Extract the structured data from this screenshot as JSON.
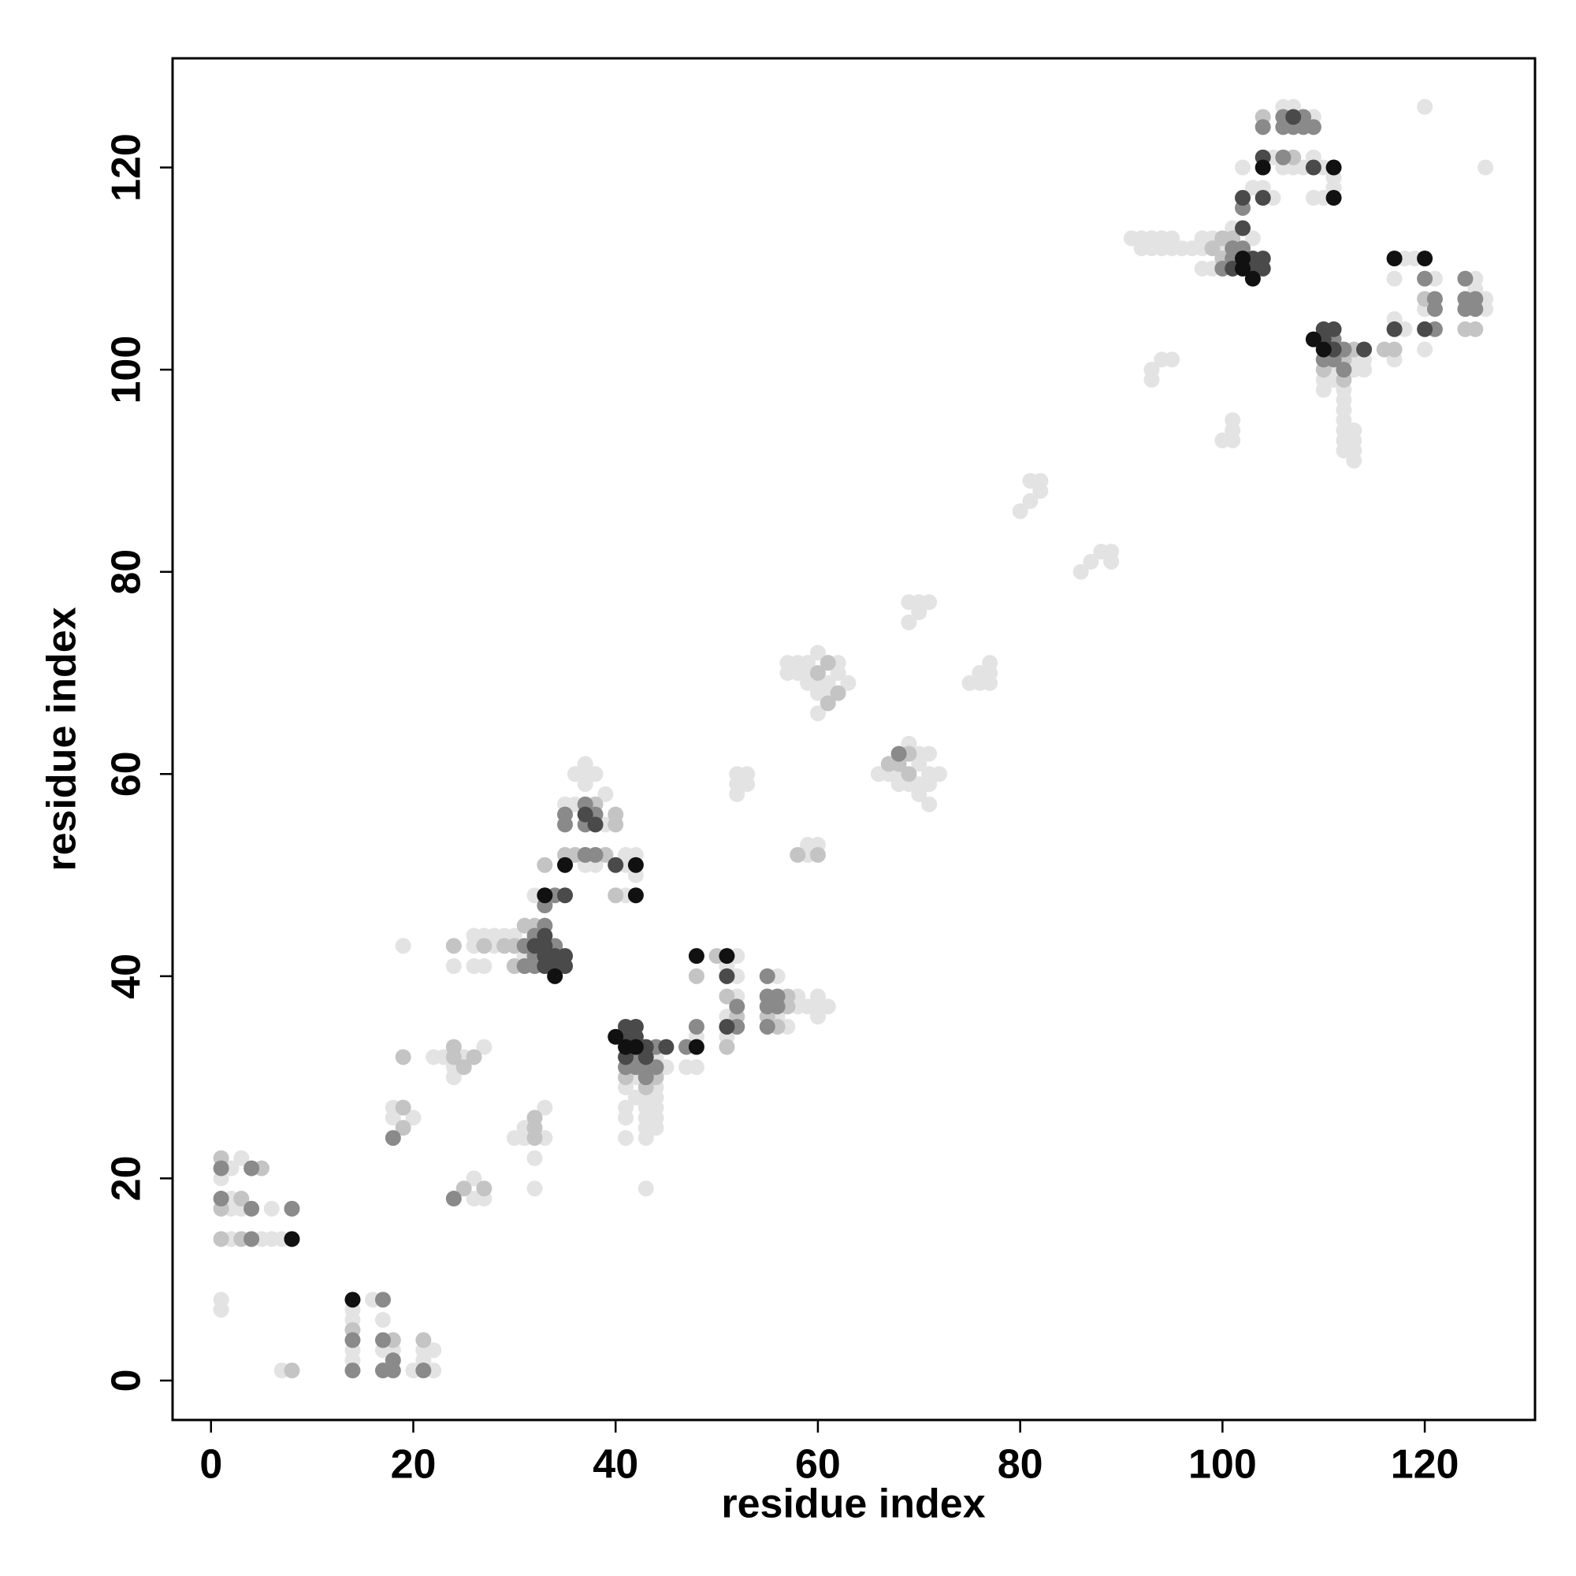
{
  "chart_data": {
    "type": "scatter",
    "x_label": "residue index",
    "y_label": "residue index",
    "xlim": [
      -3.8,
      130.9
    ],
    "ylim": [
      -3.9,
      130.8
    ],
    "xticks": [
      0,
      20,
      40,
      60,
      80,
      100,
      120
    ],
    "yticks": [
      0,
      20,
      40,
      60,
      80,
      100,
      120
    ],
    "series": [
      {
        "color": "#e3e3e3",
        "x": [
          1,
          1,
          1,
          2,
          2,
          2,
          2,
          3,
          3,
          5,
          6,
          6,
          7,
          7,
          14,
          14,
          14,
          14,
          16,
          17,
          17,
          18,
          20,
          21,
          21,
          22,
          22,
          18,
          18,
          19,
          20,
          22,
          23,
          24,
          24,
          24,
          25,
          26,
          26,
          26,
          26,
          26,
          27,
          27,
          27,
          27,
          28,
          28,
          29,
          30,
          30,
          31,
          31,
          31,
          32,
          32,
          32,
          33,
          33,
          35,
          36,
          36,
          37,
          37,
          37,
          37,
          38,
          38,
          39,
          39,
          41,
          41,
          41,
          41,
          41,
          41,
          41,
          42,
          42,
          42,
          42,
          43,
          43,
          43,
          43,
          43,
          43,
          44,
          44,
          44,
          44,
          44,
          44,
          45,
          47,
          48,
          48,
          51,
          51,
          51,
          52,
          52,
          52,
          52,
          52,
          52,
          53,
          53,
          56,
          56,
          57,
          57,
          57,
          58,
          58,
          58,
          58,
          59,
          59,
          59,
          59,
          59,
          59,
          60,
          60,
          60,
          60,
          60,
          60,
          60,
          60,
          61,
          61,
          61,
          62,
          62,
          63,
          66,
          67,
          68,
          68,
          69,
          69,
          69,
          69,
          70,
          70,
          70,
          70,
          70,
          70,
          71,
          71,
          71,
          71,
          71,
          72,
          75,
          76,
          76,
          77,
          77,
          77,
          80,
          81,
          81,
          82,
          82,
          86,
          87,
          88,
          89,
          89,
          91,
          92,
          92,
          93,
          93,
          93,
          93,
          94,
          94,
          94,
          95,
          95,
          95,
          96,
          97,
          98,
          98,
          98,
          99,
          99,
          100,
          100,
          101,
          101,
          101,
          101,
          102,
          103,
          103,
          104,
          105,
          105,
          106,
          106,
          107,
          107,
          108,
          109,
          109,
          109,
          110,
          110,
          110,
          110,
          111,
          111,
          111,
          111,
          112,
          112,
          112,
          112,
          112,
          112,
          112,
          113,
          113,
          113,
          113,
          113,
          113,
          114,
          114,
          117,
          117,
          117,
          118,
          118,
          119,
          120,
          120,
          120,
          121,
          125,
          125,
          126,
          126,
          126
        ],
        "y": [
          20,
          8,
          7,
          21,
          18,
          17,
          14,
          22,
          17,
          14,
          17,
          14,
          14,
          1,
          7,
          6,
          3,
          2,
          8,
          6,
          3,
          3,
          1,
          3,
          2,
          3,
          1,
          27,
          26,
          43,
          26,
          32,
          32,
          31,
          30,
          41,
          32,
          20,
          18,
          43,
          41,
          44,
          33,
          18,
          44,
          41,
          43,
          44,
          44,
          44,
          24,
          42,
          25,
          24,
          48,
          22,
          19,
          27,
          24,
          57,
          60,
          57,
          61,
          60,
          59,
          51,
          60,
          51,
          58,
          55,
          52,
          51,
          48,
          29,
          27,
          26,
          24,
          52,
          50,
          30,
          28,
          28,
          27,
          26,
          25,
          24,
          19,
          32,
          29,
          28,
          27,
          26,
          25,
          31,
          31,
          34,
          31,
          41,
          36,
          34,
          42,
          40,
          38,
          60,
          59,
          58,
          60,
          59,
          40,
          36,
          35,
          71,
          70,
          38,
          37,
          71,
          70,
          37,
          53,
          52,
          71,
          70,
          69,
          38,
          37,
          36,
          53,
          72,
          69,
          68,
          66,
          37,
          69,
          68,
          71,
          70,
          69,
          60,
          60,
          60,
          59,
          63,
          59,
          77,
          75,
          62,
          61,
          59,
          58,
          77,
          76,
          62,
          60,
          59,
          57,
          77,
          60,
          69,
          70,
          69,
          71,
          70,
          69,
          86,
          89,
          87,
          89,
          88,
          80,
          81,
          82,
          82,
          81,
          113,
          113,
          112,
          113,
          112,
          100,
          99,
          113,
          112,
          101,
          113,
          112,
          101,
          112,
          112,
          113,
          112,
          110,
          113,
          110,
          112,
          93,
          114,
          94,
          93,
          95,
          120,
          118,
          113,
          118,
          121,
          117,
          126,
          120,
          126,
          120,
          120,
          125,
          121,
          117,
          120,
          117,
          99,
          98,
          119,
          118,
          100,
          99,
          98,
          97,
          96,
          95,
          94,
          93,
          92,
          101,
          100,
          94,
          93,
          92,
          91,
          101,
          100,
          109,
          105,
          101,
          111,
          104,
          111,
          126,
          106,
          102,
          109,
          109,
          108,
          120,
          107,
          106
        ]
      },
      {
        "color": "#c4c4c4",
        "x": [
          1,
          1,
          1,
          3,
          3,
          5,
          8,
          14,
          18,
          21,
          19,
          19,
          19,
          24,
          24,
          24,
          25,
          25,
          26,
          27,
          27,
          29,
          30,
          30,
          31,
          32,
          32,
          32,
          32,
          33,
          35,
          36,
          38,
          39,
          40,
          40,
          40,
          41,
          43,
          44,
          48,
          50,
          51,
          51,
          52,
          55,
          56,
          57,
          57,
          58,
          60,
          60,
          61,
          61,
          62,
          67,
          68,
          69,
          69,
          99,
          100,
          100,
          101,
          104,
          107,
          110,
          112,
          112,
          113,
          116,
          117,
          120,
          124,
          125
        ],
        "y": [
          22,
          17,
          14,
          18,
          14,
          21,
          1,
          5,
          4,
          4,
          27,
          25,
          32,
          33,
          32,
          43,
          31,
          19,
          32,
          19,
          43,
          43,
          43,
          41,
          45,
          45,
          26,
          25,
          24,
          51,
          52,
          52,
          57,
          52,
          56,
          55,
          48,
          30,
          29,
          30,
          40,
          42,
          38,
          33,
          36,
          36,
          35,
          38,
          37,
          52,
          52,
          70,
          71,
          67,
          68,
          61,
          61,
          62,
          60,
          112,
          113,
          111,
          113,
          125,
          121,
          100,
          101,
          99,
          102,
          102,
          102,
          107,
          104,
          104
        ]
      },
      {
        "color": "#8a8a8a",
        "x": [
          1,
          1,
          4,
          4,
          4,
          8,
          14,
          14,
          17,
          17,
          17,
          18,
          18,
          21,
          18,
          24,
          31,
          31,
          32,
          32,
          32,
          33,
          33,
          34,
          34,
          35,
          35,
          37,
          37,
          37,
          38,
          38,
          41,
          42,
          42,
          43,
          43,
          44,
          44,
          47,
          48,
          52,
          52,
          55,
          55,
          55,
          55,
          56,
          56,
          68,
          100,
          101,
          101,
          102,
          102,
          104,
          106,
          106,
          106,
          107,
          108,
          108,
          109,
          110,
          111,
          111,
          112,
          112,
          120,
          121,
          121,
          121,
          124,
          124,
          124,
          125,
          125
        ],
        "y": [
          21,
          18,
          21,
          17,
          14,
          17,
          4,
          1,
          8,
          4,
          1,
          2,
          1,
          1,
          24,
          18,
          43,
          41,
          44,
          42,
          41,
          47,
          45,
          48,
          43,
          56,
          55,
          57,
          55,
          52,
          56,
          52,
          31,
          32,
          31,
          31,
          30,
          33,
          31,
          33,
          35,
          37,
          35,
          40,
          38,
          37,
          35,
          38,
          37,
          62,
          110,
          112,
          111,
          116,
          112,
          124,
          125,
          124,
          121,
          124,
          125,
          124,
          124,
          101,
          103,
          101,
          102,
          100,
          109,
          107,
          106,
          104,
          109,
          107,
          106,
          107,
          106
        ]
      },
      {
        "color": "#4a4a4a",
        "x": [
          32,
          33,
          33,
          33,
          33,
          34,
          34,
          35,
          35,
          35,
          37,
          38,
          40,
          41,
          41,
          41,
          42,
          42,
          43,
          43,
          45,
          51,
          51,
          101,
          102,
          102,
          103,
          103,
          104,
          104,
          104,
          104,
          107,
          109,
          110,
          110,
          111,
          111,
          114,
          117,
          120
        ],
        "y": [
          43,
          44,
          43,
          42,
          41,
          42,
          41,
          48,
          42,
          41,
          56,
          55,
          51,
          35,
          34,
          32,
          35,
          34,
          33,
          32,
          33,
          40,
          35,
          110,
          117,
          114,
          111,
          110,
          121,
          117,
          111,
          110,
          125,
          120,
          104,
          103,
          104,
          102,
          102,
          104,
          104
        ]
      },
      {
        "color": "#111111",
        "x": [
          8,
          14,
          33,
          34,
          35,
          40,
          41,
          42,
          42,
          42,
          48,
          48,
          51,
          102,
          102,
          103,
          104,
          109,
          110,
          111,
          111,
          117,
          120
        ],
        "y": [
          14,
          8,
          48,
          40,
          51,
          34,
          33,
          51,
          48,
          33,
          42,
          33,
          42,
          111,
          110,
          109,
          120,
          103,
          102,
          120,
          117,
          111,
          111
        ]
      }
    ]
  }
}
